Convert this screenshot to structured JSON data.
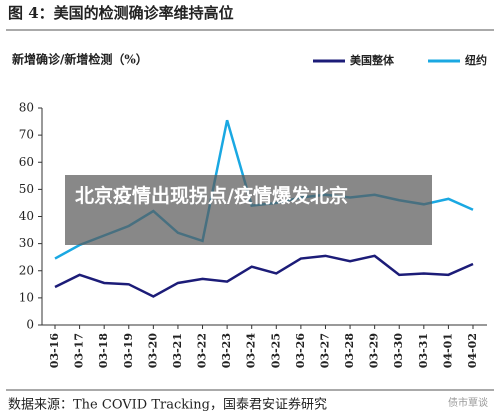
{
  "chart_data": {
    "type": "line",
    "title": "图 4：美国的检测确诊率维持高位",
    "y_label": "新增确诊/新增检测（%）",
    "source": "数据来源：The COVID Tracking，国泰君安证券研究",
    "categories": [
      "03-16",
      "03-17",
      "03-18",
      "03-19",
      "03-20",
      "03-21",
      "03-22",
      "03-23",
      "03-24",
      "03-25",
      "03-26",
      "03-27",
      "03-28",
      "03-29",
      "03-30",
      "03-31",
      "04-01",
      "04-02"
    ],
    "series": [
      {
        "name": "美国整体",
        "color": "#1c1c78",
        "values": [
          14,
          18.5,
          15.5,
          15,
          10.5,
          15.5,
          17,
          16,
          21.5,
          19,
          24.5,
          25.5,
          23.5,
          25.5,
          18.5,
          19,
          18.5,
          22.5
        ]
      },
      {
        "name": "纽约",
        "color": "#1aa8e2",
        "values": [
          24.5,
          29.5,
          33,
          36.5,
          42,
          34,
          31,
          75.5,
          44,
          45,
          47,
          48,
          47,
          48,
          46,
          44.5,
          46.5,
          42.5
        ]
      }
    ],
    "ylim": [
      0,
      80
    ],
    "yticks": [
      0,
      10,
      20,
      30,
      40,
      50,
      60,
      70,
      80
    ],
    "legend": "top-right"
  },
  "overlay": "北京疫情出现拐点/疫情爆发北京",
  "watermark": "债市覃谈"
}
